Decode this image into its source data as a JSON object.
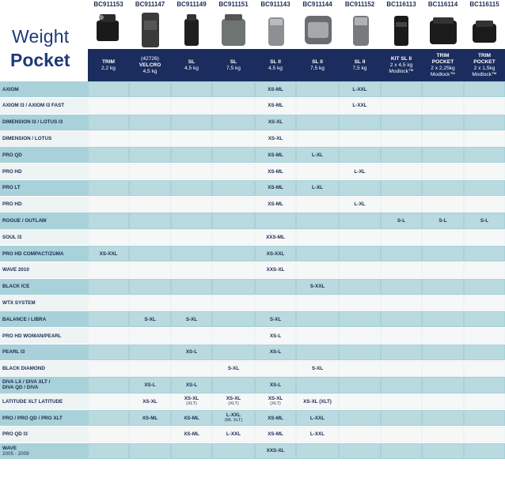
{
  "title": {
    "line1": "Weight",
    "line2": "Pocket"
  },
  "columns": [
    {
      "code": "BC911153",
      "icon": "trim-pocket-icon",
      "lines": [
        "TRIM",
        "2,2 kg"
      ]
    },
    {
      "code": "BC911147",
      "icon": "velcro-pocket-icon",
      "lines": [
        "(42726)",
        "VELCRO",
        "4,5 kg"
      ]
    },
    {
      "code": "BC911149",
      "icon": "sl-pocket-icon",
      "lines": [
        "SL",
        "4,5 kg"
      ]
    },
    {
      "code": "BC911151",
      "icon": "sl-pocket-icon",
      "lines": [
        "SL",
        "7,5 kg"
      ]
    },
    {
      "code": "BC911143",
      "icon": "sl-ii-pocket-icon",
      "lines": [
        "SL II",
        "4,5 kg"
      ]
    },
    {
      "code": "BC911144",
      "icon": "sl-ii-pocket-icon",
      "lines": [
        "SL II",
        "7,5 kg"
      ]
    },
    {
      "code": "BC911152",
      "icon": "sl-ii-pocket-icon",
      "lines": [
        "SL II",
        "7,5 kg"
      ]
    },
    {
      "code": "BC116113",
      "icon": "kit-sl-ii-icon",
      "lines": [
        "KIT SL II",
        "2 x 4,5 kg",
        "Modlock™"
      ]
    },
    {
      "code": "BC116114",
      "icon": "trim-pocket-modlock-icon",
      "lines": [
        "TRIM",
        "POCKET",
        "2 x 2,25kg",
        "Modlock™"
      ]
    },
    {
      "code": "BC116115",
      "icon": "trim-pocket-modlock-icon",
      "lines": [
        "TRIM",
        "POCKET",
        "2 x 1,5kg",
        "Modlock™"
      ]
    }
  ],
  "rows": [
    {
      "label": [
        "AXIOM"
      ],
      "cells": [
        "",
        "",
        "",
        "",
        "XS-ML",
        "",
        "L-XXL",
        "",
        "",
        ""
      ]
    },
    {
      "label": [
        "AXIOM I3 / AXIOM I3 FAST"
      ],
      "cells": [
        "",
        "",
        "",
        "",
        "XS-ML",
        "",
        "L-XXL",
        "",
        "",
        ""
      ]
    },
    {
      "label": [
        "DIMENSION I3 / LOTUS I3"
      ],
      "cells": [
        "",
        "",
        "",
        "",
        "XS-XL",
        "",
        "",
        "",
        "",
        ""
      ]
    },
    {
      "label": [
        "DIMENSION / LOTUS"
      ],
      "cells": [
        "",
        "",
        "",
        "",
        "XS-XL",
        "",
        "",
        "",
        "",
        ""
      ]
    },
    {
      "label": [
        "PRO QD"
      ],
      "cells": [
        "",
        "",
        "",
        "",
        "XS-ML",
        "L-XL",
        "",
        "",
        "",
        ""
      ]
    },
    {
      "label": [
        "PRO HD"
      ],
      "cells": [
        "",
        "",
        "",
        "",
        "XS-ML",
        "",
        "L-XL",
        "",
        "",
        ""
      ]
    },
    {
      "label": [
        "PRO LT"
      ],
      "cells": [
        "",
        "",
        "",
        "",
        "XS-ML",
        "L-XL",
        "",
        "",
        "",
        ""
      ]
    },
    {
      "label": [
        "PRO HD"
      ],
      "cells": [
        "",
        "",
        "",
        "",
        "XS-ML",
        "",
        "L-XL",
        "",
        "",
        ""
      ]
    },
    {
      "label": [
        "ROGUE / OUTLAW"
      ],
      "cells": [
        "",
        "",
        "",
        "",
        "",
        "",
        "",
        "S-L",
        "S-L",
        "S-L"
      ]
    },
    {
      "label": [
        "SOUL I3"
      ],
      "cells": [
        "",
        "",
        "",
        "",
        "XXS-ML",
        "",
        "",
        "",
        "",
        ""
      ]
    },
    {
      "label": [
        "PRO HD COMPACT/ZUMA"
      ],
      "cells": [
        "XS-XXL",
        "",
        "",
        "",
        "XS-XXL",
        "",
        "",
        "",
        "",
        ""
      ]
    },
    {
      "label": [
        "WAVE 2010"
      ],
      "cells": [
        "",
        "",
        "",
        "",
        "XXS-XL",
        "",
        "",
        "",
        "",
        ""
      ]
    },
    {
      "label": [
        "BLACK ICE"
      ],
      "cells": [
        "",
        "",
        "",
        "",
        "",
        "S-XXL",
        "",
        "",
        "",
        ""
      ]
    },
    {
      "label": [
        "WTX SYSTEM"
      ],
      "cells": [
        "",
        "",
        "",
        "",
        "",
        "",
        "",
        "",
        "",
        ""
      ]
    },
    {
      "label": [
        "BALANCE / LIBRA"
      ],
      "cells": [
        "",
        "S-XL",
        "S-XL",
        "",
        "S-XL",
        "",
        "",
        "",
        "",
        ""
      ]
    },
    {
      "label": [
        "PRO HD WOMAN/PEARL"
      ],
      "cells": [
        "",
        "",
        "",
        "",
        "XS-L",
        "",
        "",
        "",
        "",
        ""
      ]
    },
    {
      "label": [
        "PEARL I3"
      ],
      "cells": [
        "",
        "",
        "XS-L",
        "",
        "XS-L",
        "",
        "",
        "",
        "",
        ""
      ]
    },
    {
      "label": [
        "BLACK DIAMOND"
      ],
      "cells": [
        "",
        "",
        "",
        "S-XL",
        "",
        "S-XL",
        "",
        "",
        "",
        ""
      ]
    },
    {
      "label": [
        "DIVA LX / DIVA XLT /",
        "DIVA QD / DIVA"
      ],
      "cells": [
        "",
        "XS-L",
        "XS-L",
        "",
        "XS-L",
        "",
        "",
        "",
        "",
        ""
      ]
    },
    {
      "label": [
        "LATITUDE XLT LATITUDE"
      ],
      "cells": [
        "",
        "XS-XL",
        "XS-XL|(XLT)",
        "XS-XL|(XLT)",
        "XS-XL|(XLT)",
        "XS-XL (XLT)",
        "",
        "",
        "",
        ""
      ]
    },
    {
      "label": [
        "PRO / PRO QD / PRO XLT"
      ],
      "cells": [
        "",
        "XS-ML",
        "XS-ML",
        "L-XXL|(ML XLT)",
        "XS-ML",
        "L-XXL",
        "",
        "",
        "",
        ""
      ]
    },
    {
      "label": [
        "PRO QD I3"
      ],
      "cells": [
        "",
        "",
        "XS-ML",
        "L-XXL",
        "XS-ML",
        "L-XXL",
        "",
        "",
        "",
        ""
      ]
    },
    {
      "label": [
        "WAVE",
        "2005 - 2009"
      ],
      "cells": [
        "",
        "",
        "",
        "",
        "XXS-XL",
        "",
        "",
        "",
        "",
        ""
      ]
    }
  ]
}
